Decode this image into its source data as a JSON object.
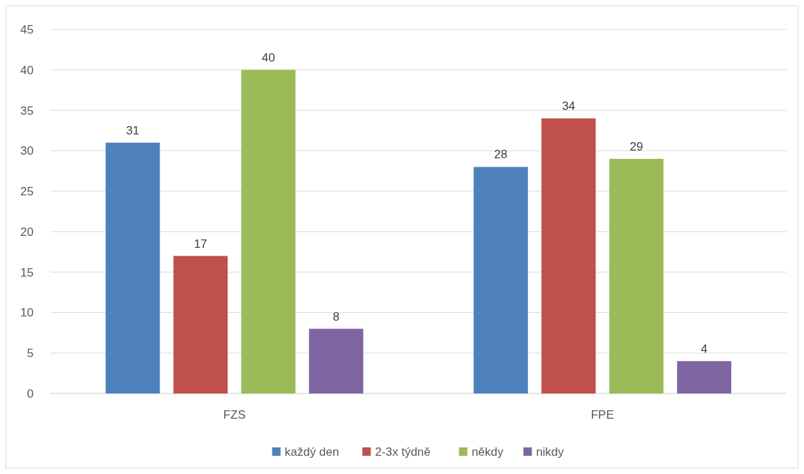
{
  "chart_data": {
    "type": "bar",
    "categories": [
      "FZS",
      "FPE"
    ],
    "series": [
      {
        "name": "každý den",
        "color": "#4f81bd",
        "values": [
          31,
          28
        ]
      },
      {
        "name": "2-3x týdně",
        "color": "#c0504d",
        "values": [
          17,
          34
        ]
      },
      {
        "name": "někdy",
        "color": "#9bbb59",
        "values": [
          40,
          29
        ]
      },
      {
        "name": "nikdy",
        "color": "#8064a2",
        "values": [
          8,
          4
        ]
      }
    ],
    "ylim": [
      0,
      45
    ],
    "yticks": [
      0,
      5,
      10,
      15,
      20,
      25,
      30,
      35,
      40,
      45
    ],
    "grid": "y",
    "legend": "bottom",
    "data_labels": true
  }
}
